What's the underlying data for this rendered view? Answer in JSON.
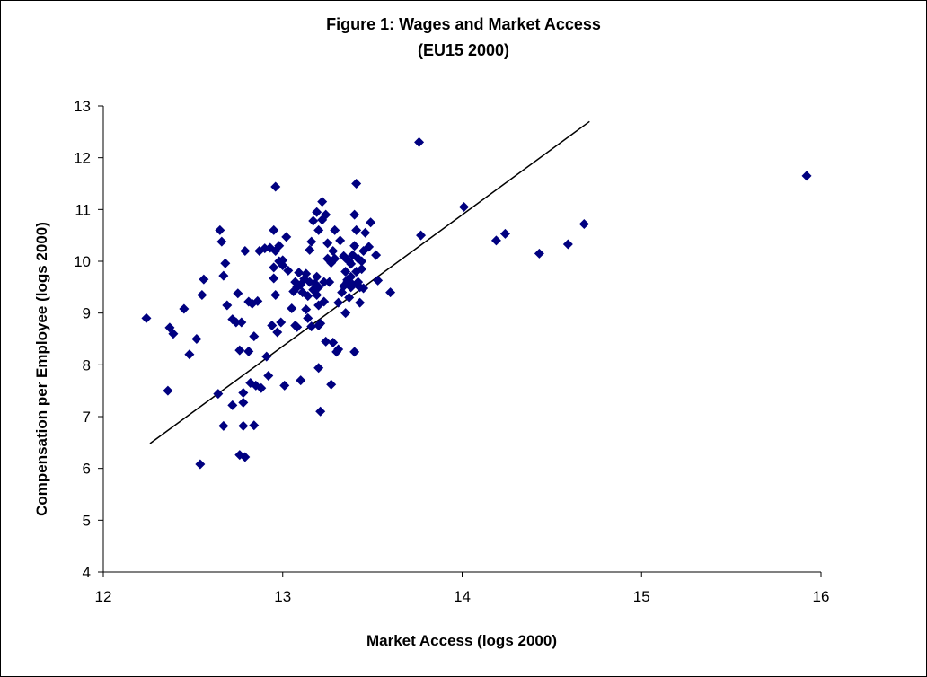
{
  "chart_data": {
    "type": "scatter",
    "title": "Figure 1: Wages and Market Access",
    "subtitle": "(EU15 2000)",
    "xlabel": "Market Access (logs 2000)",
    "ylabel": "Compensation per Employee (logs 2000)",
    "xlim": [
      12,
      16
    ],
    "ylim": [
      4,
      13
    ],
    "xticks": [
      "12",
      "13",
      "14",
      "15",
      "16"
    ],
    "yticks": [
      "4",
      "5",
      "6",
      "7",
      "8",
      "9",
      "10",
      "11",
      "12",
      "13"
    ],
    "grid": false,
    "marker_color": "#000080",
    "line_color": "#000000",
    "trendline": {
      "x": [
        12.26,
        14.71
      ],
      "y": [
        6.48,
        12.7
      ]
    },
    "points": [
      [
        12.24,
        8.9
      ],
      [
        12.36,
        7.5
      ],
      [
        12.37,
        8.72
      ],
      [
        12.39,
        8.6
      ],
      [
        12.45,
        9.08
      ],
      [
        12.48,
        8.2
      ],
      [
        12.52,
        8.5
      ],
      [
        12.55,
        9.35
      ],
      [
        12.56,
        9.65
      ],
      [
        12.54,
        6.08
      ],
      [
        12.64,
        7.44
      ],
      [
        12.65,
        10.6
      ],
      [
        12.66,
        10.38
      ],
      [
        12.67,
        9.72
      ],
      [
        12.67,
        6.82
      ],
      [
        12.68,
        9.96
      ],
      [
        12.69,
        9.15
      ],
      [
        12.72,
        7.22
      ],
      [
        12.72,
        8.88
      ],
      [
        12.74,
        8.82
      ],
      [
        12.75,
        9.38
      ],
      [
        12.76,
        8.28
      ],
      [
        12.77,
        8.82
      ],
      [
        12.76,
        6.26
      ],
      [
        12.78,
        7.46
      ],
      [
        12.78,
        7.27
      ],
      [
        12.78,
        6.82
      ],
      [
        12.79,
        6.22
      ],
      [
        12.79,
        10.2
      ],
      [
        12.81,
        9.22
      ],
      [
        12.81,
        8.26
      ],
      [
        12.82,
        7.65
      ],
      [
        12.83,
        9.18
      ],
      [
        12.84,
        6.83
      ],
      [
        12.84,
        8.55
      ],
      [
        12.85,
        7.6
      ],
      [
        12.86,
        9.23
      ],
      [
        12.87,
        10.2
      ],
      [
        12.88,
        7.55
      ],
      [
        12.9,
        10.25
      ],
      [
        12.91,
        8.16
      ],
      [
        12.92,
        7.79
      ],
      [
        12.93,
        10.26
      ],
      [
        12.94,
        8.76
      ],
      [
        12.95,
        9.88
      ],
      [
        12.95,
        10.6
      ],
      [
        12.95,
        9.67
      ],
      [
        12.96,
        9.35
      ],
      [
        12.96,
        10.2
      ],
      [
        12.96,
        11.44
      ],
      [
        12.97,
        8.63
      ],
      [
        12.98,
        10.3
      ],
      [
        12.98,
        10.0
      ],
      [
        12.99,
        8.82
      ],
      [
        13.0,
        9.92
      ],
      [
        13.0,
        10.02
      ],
      [
        13.01,
        7.6
      ],
      [
        13.02,
        10.47
      ],
      [
        13.03,
        9.82
      ],
      [
        13.05,
        9.09
      ],
      [
        13.06,
        9.42
      ],
      [
        13.07,
        9.6
      ],
      [
        13.07,
        8.76
      ],
      [
        13.08,
        9.5
      ],
      [
        13.08,
        8.73
      ],
      [
        13.09,
        9.78
      ],
      [
        13.1,
        7.7
      ],
      [
        13.1,
        9.55
      ],
      [
        13.11,
        9.4
      ],
      [
        13.12,
        9.66
      ],
      [
        13.13,
        9.76
      ],
      [
        13.13,
        9.07
      ],
      [
        13.14,
        9.33
      ],
      [
        13.14,
        8.9
      ],
      [
        13.15,
        9.6
      ],
      [
        13.15,
        10.22
      ],
      [
        13.16,
        8.74
      ],
      [
        13.16,
        10.38
      ],
      [
        13.17,
        9.45
      ],
      [
        13.17,
        10.78
      ],
      [
        13.18,
        9.57
      ],
      [
        13.19,
        9.35
      ],
      [
        13.19,
        9.7
      ],
      [
        13.19,
        10.95
      ],
      [
        13.2,
        8.76
      ],
      [
        13.2,
        9.15
      ],
      [
        13.2,
        7.94
      ],
      [
        13.2,
        10.6
      ],
      [
        13.2,
        9.5
      ],
      [
        13.21,
        8.8
      ],
      [
        13.21,
        7.1
      ],
      [
        13.22,
        10.8
      ],
      [
        13.22,
        11.15
      ],
      [
        13.23,
        9.6
      ],
      [
        13.23,
        9.22
      ],
      [
        13.24,
        8.45
      ],
      [
        13.24,
        10.9
      ],
      [
        13.25,
        10.05
      ],
      [
        13.25,
        10.35
      ],
      [
        13.26,
        9.6
      ],
      [
        13.27,
        9.97
      ],
      [
        13.27,
        7.62
      ],
      [
        13.28,
        8.43
      ],
      [
        13.28,
        10.2
      ],
      [
        13.29,
        10.6
      ],
      [
        13.29,
        10.05
      ],
      [
        13.3,
        8.25
      ],
      [
        13.31,
        8.3
      ],
      [
        13.31,
        9.2
      ],
      [
        13.32,
        10.4
      ],
      [
        13.33,
        9.4
      ],
      [
        13.34,
        10.1
      ],
      [
        13.34,
        9.52
      ],
      [
        13.35,
        9.0
      ],
      [
        13.35,
        9.8
      ],
      [
        13.35,
        10.06
      ],
      [
        13.36,
        9.6
      ],
      [
        13.36,
        9.64
      ],
      [
        13.37,
        9.3
      ],
      [
        13.37,
        10.0
      ],
      [
        13.38,
        9.95
      ],
      [
        13.38,
        9.7
      ],
      [
        13.38,
        9.5
      ],
      [
        13.39,
        10.12
      ],
      [
        13.39,
        9.55
      ],
      [
        13.4,
        8.25
      ],
      [
        13.4,
        10.3
      ],
      [
        13.4,
        10.9
      ],
      [
        13.41,
        9.8
      ],
      [
        13.41,
        10.6
      ],
      [
        13.41,
        11.5
      ],
      [
        13.42,
        9.6
      ],
      [
        13.42,
        10.05
      ],
      [
        13.43,
        9.2
      ],
      [
        13.43,
        9.5
      ],
      [
        13.44,
        9.85
      ],
      [
        13.44,
        10.0
      ],
      [
        13.45,
        9.48
      ],
      [
        13.45,
        10.2
      ],
      [
        13.46,
        10.55
      ],
      [
        13.48,
        10.28
      ],
      [
        13.49,
        10.75
      ],
      [
        13.52,
        10.12
      ],
      [
        13.53,
        9.63
      ],
      [
        13.6,
        9.4
      ],
      [
        13.76,
        12.3
      ],
      [
        13.77,
        10.5
      ],
      [
        14.01,
        11.05
      ],
      [
        14.19,
        10.4
      ],
      [
        14.24,
        10.53
      ],
      [
        14.43,
        10.15
      ],
      [
        14.59,
        10.33
      ],
      [
        14.68,
        10.72
      ],
      [
        15.92,
        11.65
      ]
    ]
  }
}
